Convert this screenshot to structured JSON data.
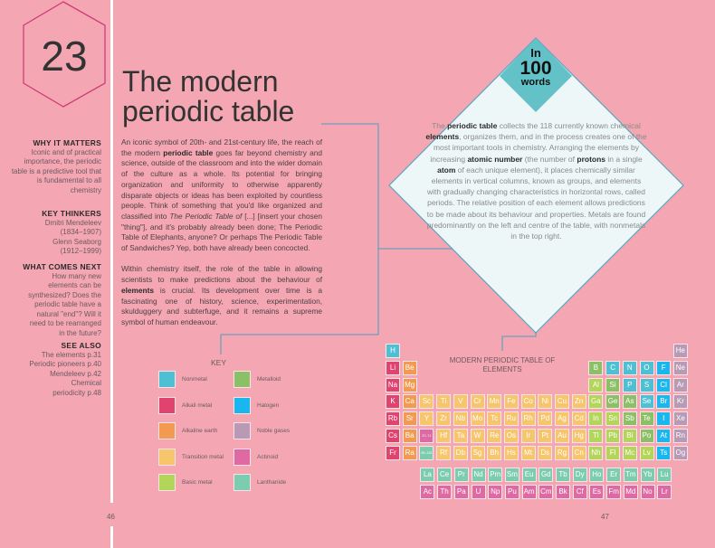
{
  "chapter_number": "23",
  "title_line1": "The modern",
  "title_line2": "periodic table",
  "sidebar": {
    "why_heading": "WHY IT MATTERS",
    "why_text": "Iconic and of practical importance, the periodic table is a predictive tool that is fundamental to all chemistry",
    "thinkers_heading": "KEY THINKERS",
    "thinkers": [
      "Dmitri Mendeleev",
      "(1834–1907)",
      "Glenn Seaborg",
      "(1912–1999)"
    ],
    "next_heading": "WHAT COMES NEXT",
    "next_text": "How many new elements can be synthesized? Does the periodic table have a natural \"end\"? Will it need to be rearranged in the future?",
    "see_heading": "SEE ALSO",
    "see_also": [
      "The elements p.31",
      "Periodic pioneers p.40",
      "Mendeleev p.42",
      "Chemical",
      "periodicity p.48"
    ]
  },
  "body": {
    "p1": [
      "An iconic symbol of 20th- and 21st-century life, the reach of the modern ",
      "periodic table",
      " goes far beyond chemistry and science, outside of the classroom and into the wider domain of the culture as a whole. Its potential for bringing organization and uniformity to otherwise apparently disparate objects or ideas has been exploited by countless people. Think of something that you'd like organized and classified into ",
      "The Periodic Table of",
      " [...] [insert your chosen \"thing\"], and it's probably already been done; The Periodic Table of Elephants, anyone? Or perhaps The Periodic Table of Sandwiches? Yep, both have already been concocted."
    ],
    "p2": [
      "Within chemistry itself, the role of the table in allowing scientists to make predictions about the behaviour of ",
      "elements",
      " is crucial. Its development over time is a fascinating one of history, science, experimentation, skulduggery and subterfuge, and it remains a supreme symbol of human endeavour."
    ]
  },
  "in100": {
    "in": "In",
    "num": "100",
    "words": "words"
  },
  "summary": [
    "The ",
    "periodic table",
    " collects the 118 currently known chemical ",
    "elements",
    ", organizes them, and in the process creates one of the most important tools in chemistry. Arranging the elements by increasing ",
    "atomic number",
    " (the number of ",
    "protons",
    " in a single ",
    "atom",
    " of each unique element), it places chemically similar elements in vertical columns, known as groups, and elements with gradually changing characteristics in horizontal rows, called periods. The relative position of each element allows predictions to be made about its behaviour and properties. Metals are found predominantly on the left and centre of the table, with nonmetals in the top right."
  ],
  "key": {
    "title": "KEY",
    "items": [
      {
        "label": "Nonmetal",
        "color": "#4fc0d4"
      },
      {
        "label": "Alkali metal",
        "color": "#e0436f"
      },
      {
        "label": "Alkaline earth",
        "color": "#f39a52"
      },
      {
        "label": "Transition metal",
        "color": "#f7c56b"
      },
      {
        "label": "Basic metal",
        "color": "#b3d65a"
      },
      {
        "label": "Metalloid",
        "color": "#8cc066"
      },
      {
        "label": "Halogen",
        "color": "#1ab6ee"
      },
      {
        "label": "Noble gases",
        "color": "#b89ab5"
      },
      {
        "label": "Actinoid",
        "color": "#de69a3"
      },
      {
        "label": "Lanthanide",
        "color": "#7ccdb0"
      }
    ]
  },
  "periodic_table": {
    "title": "MODERN PERIODIC TABLE OF ELEMENTS",
    "category_colors": {
      "n": "#4fc0d4",
      "a": "#e0436f",
      "e": "#f39a52",
      "t": "#f7c56b",
      "b": "#b3d65a",
      "m": "#8cc066",
      "h": "#1ab6ee",
      "g": "#b89ab5",
      "c": "#de69a3",
      "l": "#7ccdb0"
    },
    "rows": [
      [
        "H:n",
        "",
        "",
        "",
        "",
        "",
        "",
        "",
        "",
        "",
        "",
        "",
        "",
        "",
        "",
        "",
        "",
        "He:g"
      ],
      [
        "Li:a",
        "Be:e",
        "",
        "",
        "",
        "",
        "",
        "",
        "",
        "",
        "",
        "",
        "B:m",
        "C:n",
        "N:n",
        "O:n",
        "F:h",
        "Ne:g"
      ],
      [
        "Na:a",
        "Mg:e",
        "",
        "",
        "",
        "",
        "",
        "",
        "",
        "",
        "",
        "",
        "Al:b",
        "Si:m",
        "P:n",
        "S:n",
        "Cl:h",
        "Ar:g"
      ],
      [
        "K:a",
        "Ca:e",
        "Sc:t",
        "Ti:t",
        "V:t",
        "Cr:t",
        "Mn:t",
        "Fe:t",
        "Co:t",
        "Ni:t",
        "Cu:t",
        "Zn:t",
        "Ga:b",
        "Ge:m",
        "As:m",
        "Se:n",
        "Br:h",
        "Kr:g"
      ],
      [
        "Rb:a",
        "Sr:e",
        "Y:t",
        "Zr:t",
        "Nb:t",
        "Mo:t",
        "Tc:t",
        "Ru:t",
        "Rh:t",
        "Pd:t",
        "Ag:t",
        "Cd:t",
        "In:b",
        "Sn:b",
        "Sb:m",
        "Te:m",
        "I:h",
        "Xe:g"
      ],
      [
        "Cs:a",
        "Ba:e",
        "57–71:c",
        "Hf:t",
        "Ta:t",
        "W:t",
        "Re:t",
        "Os:t",
        "Ir:t",
        "Pt:t",
        "Au:t",
        "Hg:t",
        "Tl:b",
        "Pb:b",
        "Bi:b",
        "Po:m",
        "At:h",
        "Rn:g"
      ],
      [
        "Fr:a",
        "Ra:e",
        "89–103:l",
        "Rf:t",
        "Db:t",
        "Sg:t",
        "Bh:t",
        "Hs:t",
        "Mt:t",
        "Ds:t",
        "Rg:t",
        "Cn:t",
        "Nh:b",
        "Fl:b",
        "Mc:b",
        "Lv:b",
        "Ts:h",
        "Og:g"
      ]
    ],
    "lanthanides": [
      "La",
      "Ce",
      "Pr",
      "Nd",
      "Pm",
      "Sm",
      "Eu",
      "Gd",
      "Tb",
      "Dy",
      "Ho",
      "Er",
      "Tm",
      "Yb",
      "Lu"
    ],
    "actinides": [
      "Ac",
      "Th",
      "Pa",
      "U",
      "Np",
      "Pu",
      "Am",
      "Cm",
      "Bk",
      "Cf",
      "Es",
      "Fm",
      "Md",
      "No",
      "Lr"
    ]
  },
  "page_left": "46",
  "page_right": "47"
}
